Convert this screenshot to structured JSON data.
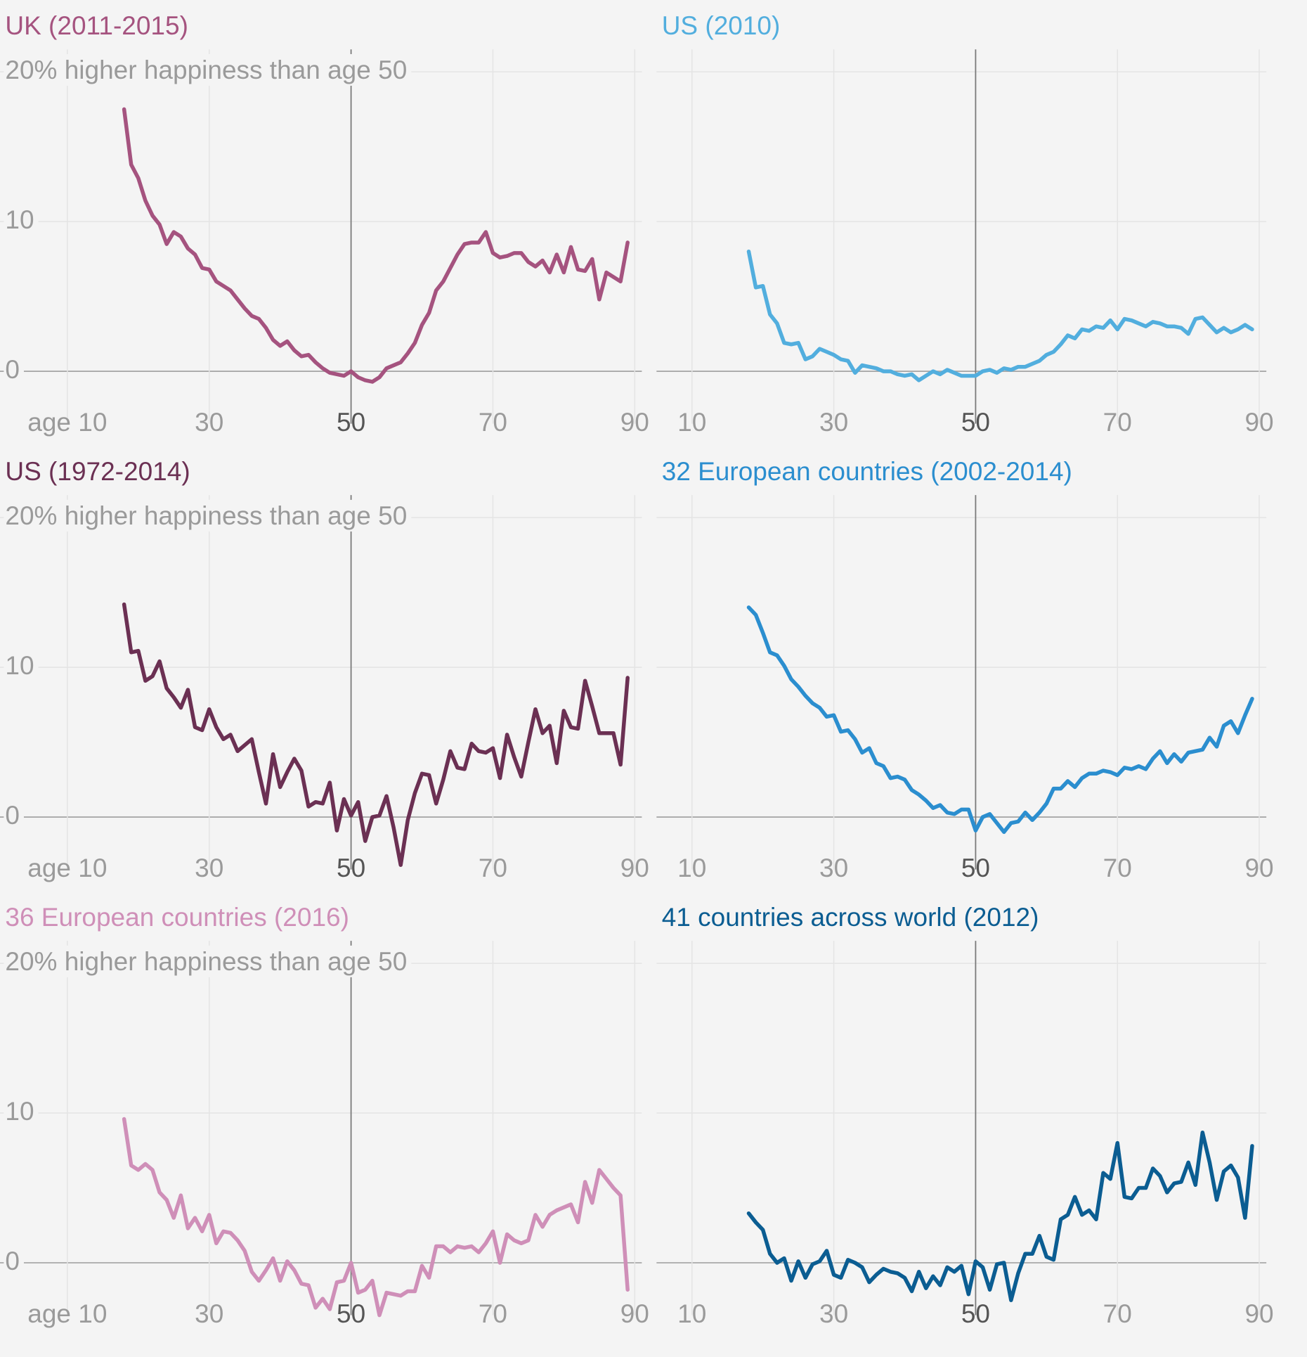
{
  "chart_data": [
    {
      "type": "line",
      "title": "UK (2011-2015)",
      "color": "#a5537f",
      "x": [
        18,
        19,
        20,
        21,
        22,
        23,
        24,
        25,
        26,
        27,
        28,
        29,
        30,
        31,
        32,
        33,
        34,
        35,
        36,
        37,
        38,
        39,
        40,
        41,
        42,
        43,
        44,
        45,
        46,
        47,
        48,
        49,
        50,
        51,
        52,
        53,
        54,
        55,
        56,
        57,
        58,
        59,
        60,
        61,
        62,
        63,
        64,
        65,
        66,
        67,
        68,
        69,
        70,
        71,
        72,
        73,
        74,
        75,
        76,
        77,
        78,
        79,
        80,
        81,
        82,
        83,
        84,
        85,
        86,
        87,
        88,
        89
      ],
      "values": [
        17.5,
        13.8,
        12.9,
        11.4,
        10.4,
        9.8,
        8.5,
        9.3,
        9.0,
        8.2,
        7.8,
        6.9,
        6.8,
        6.0,
        5.7,
        5.4,
        4.8,
        4.2,
        3.7,
        3.5,
        2.9,
        2.1,
        1.7,
        2.0,
        1.4,
        1.0,
        1.1,
        0.6,
        0.2,
        -0.1,
        -0.2,
        -0.3,
        0,
        -0.4,
        -0.6,
        -0.7,
        -0.4,
        0.2,
        0.4,
        0.6,
        1.2,
        1.9,
        3.1,
        3.9,
        5.4,
        6.0,
        6.9,
        7.8,
        8.5,
        8.6,
        8.6,
        9.3,
        7.9,
        7.6,
        7.7,
        7.9,
        7.9,
        7.3,
        7.0,
        7.4,
        6.6,
        7.8,
        6.6,
        8.3,
        6.8,
        6.7,
        7.5,
        4.8,
        6.6,
        6.3,
        6.0,
        8.6
      ],
      "xlim": [
        0.5,
        91
      ],
      "ylim": [
        -3.5,
        21.5
      ],
      "xticks": [
        {
          "value": 10,
          "label": "age 10"
        },
        30,
        50,
        70,
        90
      ],
      "yticks": [
        0,
        10,
        {
          "value": 20,
          "label": "20% higher happiness than age 50"
        }
      ],
      "reference_x": 50,
      "show_ytick_labels": true
    },
    {
      "type": "line",
      "title": "US (2010)",
      "color": "#52aede",
      "x": [
        18,
        19,
        20,
        21,
        22,
        23,
        24,
        25,
        26,
        27,
        28,
        29,
        30,
        31,
        32,
        33,
        34,
        35,
        36,
        37,
        38,
        39,
        40,
        41,
        42,
        43,
        44,
        45,
        46,
        47,
        48,
        49,
        50,
        51,
        52,
        53,
        54,
        55,
        56,
        57,
        58,
        59,
        60,
        61,
        62,
        63,
        64,
        65,
        66,
        67,
        68,
        69,
        70,
        71,
        72,
        73,
        74,
        75,
        76,
        77,
        78,
        79,
        80,
        81,
        82,
        83,
        84,
        85,
        86,
        87,
        88,
        89
      ],
      "values": [
        8.0,
        5.6,
        5.7,
        3.8,
        3.2,
        1.9,
        1.8,
        1.9,
        0.8,
        1.0,
        1.5,
        1.3,
        1.1,
        0.8,
        0.7,
        -0.1,
        0.4,
        0.3,
        0.2,
        0,
        0,
        -0.2,
        -0.3,
        -0.2,
        -0.6,
        -0.3,
        0,
        -0.2,
        0.1,
        -0.1,
        -0.3,
        -0.3,
        -0.3,
        0,
        0.1,
        -0.1,
        0.2,
        0.1,
        0.3,
        0.3,
        0.5,
        0.7,
        1.1,
        1.3,
        1.8,
        2.4,
        2.2,
        2.8,
        2.7,
        3.0,
        2.9,
        3.4,
        2.8,
        3.5,
        3.4,
        3.2,
        3.0,
        3.3,
        3.2,
        3.0,
        3.0,
        2.9,
        2.5,
        3.5,
        3.6,
        3.1,
        2.6,
        2.9,
        2.6,
        2.8,
        3.1,
        2.8
      ],
      "xlim": [
        5,
        91
      ],
      "ylim": [
        -3.5,
        21.5
      ],
      "xticks": [
        10,
        30,
        50,
        70,
        90
      ],
      "yticks": [
        0,
        10,
        20
      ],
      "reference_x": 50,
      "show_ytick_labels": false
    },
    {
      "type": "line",
      "title": "US (1972-2014)",
      "color": "#6b3053",
      "x": [
        18,
        19,
        20,
        21,
        22,
        23,
        24,
        25,
        26,
        27,
        28,
        29,
        30,
        31,
        32,
        33,
        34,
        35,
        36,
        37,
        38,
        39,
        40,
        41,
        42,
        43,
        44,
        45,
        46,
        47,
        48,
        49,
        50,
        51,
        52,
        53,
        54,
        55,
        56,
        57,
        58,
        59,
        60,
        61,
        62,
        63,
        64,
        65,
        66,
        67,
        68,
        69,
        70,
        71,
        72,
        73,
        74,
        75,
        76,
        77,
        78,
        79,
        80,
        81,
        82,
        83,
        84,
        85,
        86,
        87,
        88,
        89
      ],
      "values": [
        14.2,
        11.0,
        11.1,
        9.1,
        9.4,
        10.4,
        8.6,
        8.0,
        7.3,
        8.5,
        6.0,
        5.8,
        7.2,
        6.0,
        5.2,
        5.5,
        4.4,
        4.8,
        5.2,
        3.0,
        0.9,
        4.2,
        2.0,
        3.0,
        3.9,
        3.1,
        0.7,
        1.0,
        0.9,
        2.3,
        -0.9,
        1.2,
        0.1,
        1.0,
        -1.6,
        0,
        0.1,
        1.4,
        -0.7,
        -3.2,
        -0.2,
        1.6,
        2.9,
        2.8,
        0.9,
        2.5,
        4.4,
        3.3,
        3.2,
        4.9,
        4.4,
        4.3,
        4.6,
        2.6,
        5.5,
        4.0,
        2.7,
        5.0,
        7.2,
        5.6,
        6.1,
        3.6,
        7.1,
        6.0,
        5.9,
        9.1,
        7.4,
        5.6,
        5.6,
        5.6,
        3.5,
        9.3
      ],
      "xlim": [
        0.5,
        91
      ],
      "ylim": [
        -3.5,
        21.5
      ],
      "xticks": [
        {
          "value": 10,
          "label": "age 10"
        },
        30,
        50,
        70,
        90
      ],
      "yticks": [
        0,
        10,
        {
          "value": 20,
          "label": "20% higher happiness than age 50"
        }
      ],
      "reference_x": 50,
      "show_ytick_labels": true
    },
    {
      "type": "line",
      "title": "32 European countries (2002-2014)",
      "color": "#2b8ecf",
      "x": [
        18,
        19,
        20,
        21,
        22,
        23,
        24,
        25,
        26,
        27,
        28,
        29,
        30,
        31,
        32,
        33,
        34,
        35,
        36,
        37,
        38,
        39,
        40,
        41,
        42,
        43,
        44,
        45,
        46,
        47,
        48,
        49,
        50,
        51,
        52,
        53,
        54,
        55,
        56,
        57,
        58,
        59,
        60,
        61,
        62,
        63,
        64,
        65,
        66,
        67,
        68,
        69,
        70,
        71,
        72,
        73,
        74,
        75,
        76,
        77,
        78,
        79,
        80,
        81,
        82,
        83,
        84,
        85,
        86,
        87,
        88,
        89
      ],
      "values": [
        14.0,
        13.5,
        12.3,
        11.0,
        10.8,
        10.1,
        9.2,
        8.7,
        8.1,
        7.6,
        7.3,
        6.7,
        6.8,
        5.7,
        5.8,
        5.2,
        4.3,
        4.6,
        3.6,
        3.4,
        2.6,
        2.7,
        2.5,
        1.8,
        1.5,
        1.1,
        0.6,
        0.8,
        0.3,
        0.2,
        0.5,
        0.5,
        -0.9,
        0,
        0.2,
        -0.4,
        -1.0,
        -0.4,
        -0.3,
        0.3,
        -0.2,
        0.3,
        0.9,
        1.9,
        1.9,
        2.4,
        2.0,
        2.6,
        2.9,
        2.9,
        3.1,
        3.0,
        2.8,
        3.3,
        3.2,
        3.4,
        3.2,
        3.9,
        4.4,
        3.6,
        4.2,
        3.7,
        4.3,
        4.4,
        4.5,
        5.3,
        4.7,
        6.1,
        6.4,
        5.6,
        6.8,
        7.9
      ],
      "xlim": [
        5,
        91
      ],
      "ylim": [
        -3.5,
        21.5
      ],
      "xticks": [
        10,
        30,
        50,
        70,
        90
      ],
      "yticks": [
        0,
        10,
        20
      ],
      "reference_x": 50,
      "show_ytick_labels": false
    },
    {
      "type": "line",
      "title": "36 European countries (2016)",
      "color": "#cf8fb8",
      "x": [
        18,
        19,
        20,
        21,
        22,
        23,
        24,
        25,
        26,
        27,
        28,
        29,
        30,
        31,
        32,
        33,
        34,
        35,
        36,
        37,
        38,
        39,
        40,
        41,
        42,
        43,
        44,
        45,
        46,
        47,
        48,
        49,
        50,
        51,
        52,
        53,
        54,
        55,
        56,
        57,
        58,
        59,
        60,
        61,
        62,
        63,
        64,
        65,
        66,
        67,
        68,
        69,
        70,
        71,
        72,
        73,
        74,
        75,
        76,
        77,
        78,
        79,
        80,
        81,
        82,
        83,
        84,
        85,
        86,
        87,
        88,
        89
      ],
      "values": [
        9.6,
        6.5,
        6.2,
        6.6,
        6.2,
        4.7,
        4.2,
        3.0,
        4.5,
        2.3,
        3.0,
        2.1,
        3.2,
        1.3,
        2.1,
        2.0,
        1.5,
        0.8,
        -0.6,
        -1.2,
        -0.5,
        0.3,
        -1.2,
        0.1,
        -0.5,
        -1.4,
        -1.5,
        -3.0,
        -2.4,
        -3.1,
        -1.3,
        -1.2,
        0,
        -2.0,
        -1.8,
        -1.2,
        -3.5,
        -2.0,
        -2.1,
        -2.2,
        -1.9,
        -1.9,
        -0.2,
        -1.0,
        1.1,
        1.1,
        0.7,
        1.1,
        1.0,
        1.1,
        0.7,
        1.3,
        2.1,
        0,
        1.9,
        1.5,
        1.3,
        1.5,
        3.2,
        2.4,
        3.2,
        3.5,
        3.7,
        3.9,
        2.7,
        5.4,
        4.0,
        6.2,
        5.6,
        5.0,
        4.5,
        -1.8
      ],
      "xlim": [
        0.5,
        91
      ],
      "ylim": [
        -3.5,
        21.5
      ],
      "xticks": [
        {
          "value": 10,
          "label": "age 10"
        },
        30,
        50,
        70,
        90
      ],
      "yticks": [
        0,
        10,
        {
          "value": 20,
          "label": "20% higher happiness than age 50"
        }
      ],
      "reference_x": 50,
      "show_ytick_labels": true
    },
    {
      "type": "line",
      "title": "41 countries across world (2012)",
      "color": "#0b5d92",
      "x": [
        18,
        19,
        20,
        21,
        22,
        23,
        24,
        25,
        26,
        27,
        28,
        29,
        30,
        31,
        32,
        33,
        34,
        35,
        36,
        37,
        38,
        39,
        40,
        41,
        42,
        43,
        44,
        45,
        46,
        47,
        48,
        49,
        50,
        51,
        52,
        53,
        54,
        55,
        56,
        57,
        58,
        59,
        60,
        61,
        62,
        63,
        64,
        65,
        66,
        67,
        68,
        69,
        70,
        71,
        72,
        73,
        74,
        75,
        76,
        77,
        78,
        79,
        80,
        81,
        82,
        83,
        84,
        85,
        86,
        87,
        88,
        89
      ],
      "values": [
        3.3,
        2.7,
        2.2,
        0.6,
        0,
        0.3,
        -1.2,
        0.1,
        -1.0,
        -0.1,
        0.1,
        0.8,
        -0.8,
        -1.0,
        0.2,
        0,
        -0.3,
        -1.3,
        -0.8,
        -0.4,
        -0.6,
        -0.7,
        -1.0,
        -1.9,
        -0.6,
        -1.7,
        -0.9,
        -1.5,
        -0.3,
        -0.6,
        -0.2,
        -2.1,
        0.1,
        -0.3,
        -1.8,
        -0.1,
        0,
        -2.5,
        -0.7,
        0.6,
        0.6,
        1.8,
        0.4,
        0.2,
        2.9,
        3.2,
        4.4,
        3.2,
        3.5,
        2.9,
        6.0,
        5.6,
        8.0,
        4.4,
        4.3,
        5.0,
        5.0,
        6.3,
        5.8,
        4.7,
        5.3,
        5.4,
        6.7,
        5.2,
        8.7,
        6.7,
        4.2,
        6.1,
        6.5,
        5.7,
        3.0,
        7.8
      ],
      "xlim": [
        5,
        91
      ],
      "ylim": [
        -3.5,
        21.5
      ],
      "xticks": [
        10,
        30,
        50,
        70,
        90
      ],
      "yticks": [
        0,
        10,
        20
      ],
      "reference_x": 50,
      "show_ytick_labels": false
    }
  ]
}
